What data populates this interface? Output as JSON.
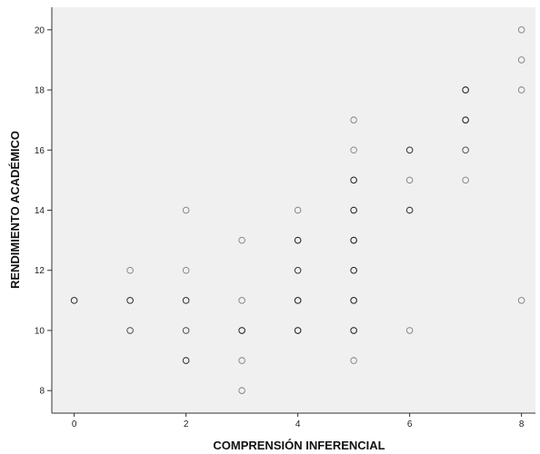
{
  "chart_data": {
    "type": "scatter",
    "title": "",
    "xlabel": "COMPRENSIÓN INFERENCIAL",
    "ylabel": "RENDIMIENTO ACADÉMICO",
    "xlim": [
      -0.4,
      8.25
    ],
    "ylim": [
      7.25,
      20.75
    ],
    "x_ticks": [
      0,
      2,
      4,
      6,
      8
    ],
    "y_ticks": [
      8,
      10,
      12,
      14,
      16,
      18,
      20
    ],
    "grid": false,
    "legend": "none",
    "colors": {
      "plot_background": "#f0f0f0",
      "marker_stroke": "#222222",
      "axis": "#333333"
    },
    "points": [
      {
        "x": 0,
        "y": 11,
        "n": 3
      },
      {
        "x": 1,
        "y": 10,
        "n": 2
      },
      {
        "x": 1,
        "y": 11,
        "n": 3
      },
      {
        "x": 1,
        "y": 12,
        "n": 1
      },
      {
        "x": 2,
        "y": 9,
        "n": 3
      },
      {
        "x": 2,
        "y": 10,
        "n": 2
      },
      {
        "x": 2,
        "y": 11,
        "n": 3
      },
      {
        "x": 2,
        "y": 12,
        "n": 1
      },
      {
        "x": 2,
        "y": 14,
        "n": 1
      },
      {
        "x": 3,
        "y": 8,
        "n": 1
      },
      {
        "x": 3,
        "y": 9,
        "n": 1
      },
      {
        "x": 3,
        "y": 10,
        "n": 4
      },
      {
        "x": 3,
        "y": 11,
        "n": 1
      },
      {
        "x": 3,
        "y": 13,
        "n": 1
      },
      {
        "x": 4,
        "y": 10,
        "n": 4
      },
      {
        "x": 4,
        "y": 11,
        "n": 4
      },
      {
        "x": 4,
        "y": 12,
        "n": 3
      },
      {
        "x": 4,
        "y": 13,
        "n": 4
      },
      {
        "x": 4,
        "y": 14,
        "n": 1
      },
      {
        "x": 5,
        "y": 9,
        "n": 1
      },
      {
        "x": 5,
        "y": 10,
        "n": 4
      },
      {
        "x": 5,
        "y": 11,
        "n": 4
      },
      {
        "x": 5,
        "y": 12,
        "n": 4
      },
      {
        "x": 5,
        "y": 13,
        "n": 5
      },
      {
        "x": 5,
        "y": 14,
        "n": 4
      },
      {
        "x": 5,
        "y": 15,
        "n": 4
      },
      {
        "x": 5,
        "y": 16,
        "n": 1
      },
      {
        "x": 5,
        "y": 17,
        "n": 1
      },
      {
        "x": 6,
        "y": 10,
        "n": 1
      },
      {
        "x": 6,
        "y": 14,
        "n": 3
      },
      {
        "x": 6,
        "y": 15,
        "n": 1
      },
      {
        "x": 6,
        "y": 16,
        "n": 3
      },
      {
        "x": 7,
        "y": 15,
        "n": 1
      },
      {
        "x": 7,
        "y": 16,
        "n": 2
      },
      {
        "x": 7,
        "y": 17,
        "n": 4
      },
      {
        "x": 7,
        "y": 18,
        "n": 4
      },
      {
        "x": 8,
        "y": 11,
        "n": 1
      },
      {
        "x": 8,
        "y": 18,
        "n": 1
      },
      {
        "x": 8,
        "y": 19,
        "n": 1
      },
      {
        "x": 8,
        "y": 20,
        "n": 1
      }
    ]
  }
}
